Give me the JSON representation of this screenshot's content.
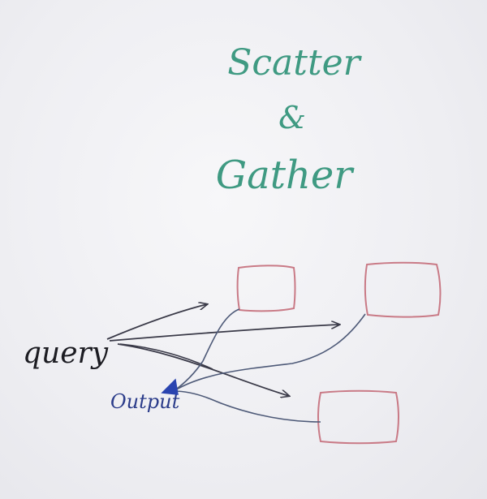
{
  "title": {
    "line1": "Scatter",
    "line2": "&",
    "line3": "Gather"
  },
  "labels": {
    "query": "query",
    "output": "Output"
  },
  "nodes": [
    {
      "id": "node-1",
      "label": ""
    },
    {
      "id": "node-2",
      "label": ""
    },
    {
      "id": "node-3",
      "label": ""
    }
  ],
  "edges": {
    "scatter": [
      {
        "from": "query",
        "to": "node-1"
      },
      {
        "from": "query",
        "to": "node-2"
      },
      {
        "from": "query",
        "to": "node-3"
      }
    ],
    "gather": [
      {
        "from": "node-1",
        "to": "output"
      },
      {
        "from": "node-2",
        "to": "output"
      },
      {
        "from": "node-3",
        "to": "output"
      }
    ]
  },
  "colors": {
    "title": "#3f9a82",
    "node_border": "#c97a86",
    "scatter_arrow": "#3a3a48",
    "gather_line": "#4e5a78",
    "query_text": "#1c1c22",
    "output_text": "#2b3c8a",
    "output_arrowhead": "#2a44b0"
  }
}
